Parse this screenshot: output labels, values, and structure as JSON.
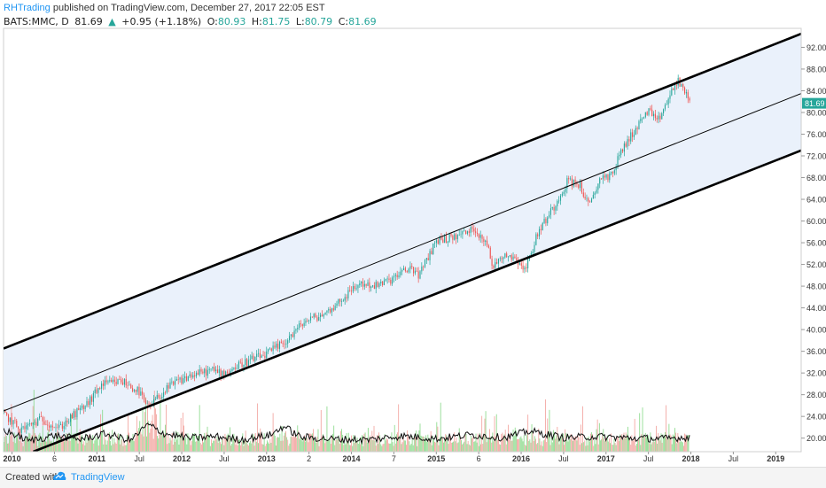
{
  "header": {
    "user": "RHTrading",
    "published": "published on TradingView.com, December 27, 2017 22:05 EST",
    "symbol": "BATS:MMC, D",
    "last": "81.69",
    "change_arrow": "▲",
    "change": "+0.95 (+1.18%)",
    "o_label": "O:",
    "o_value": "80.93",
    "h_label": "H:",
    "h_value": "81.75",
    "l_label": "L:",
    "l_value": "80.79",
    "c_label": "C:",
    "c_value": "81.69"
  },
  "footer": {
    "created": "Created with",
    "brand": "TradingView"
  },
  "colors": {
    "up": "#26a69a",
    "down": "#ef5350",
    "channel_fill": "#eaf1fb",
    "channel_line": "#000000",
    "brand": "#2196f3"
  },
  "chart_data": {
    "type": "candlestick",
    "y_ticks": [
      "92.00",
      "88.00",
      "84.00",
      "80.00",
      "76.00",
      "72.00",
      "68.00",
      "64.00",
      "60.00",
      "56.00",
      "52.00",
      "48.00",
      "44.00",
      "40.00",
      "36.00",
      "32.00",
      "28.00",
      "24.00",
      "20.00"
    ],
    "ylim": [
      17.5,
      95.5
    ],
    "x_ticks": [
      "2010",
      "6",
      "2011",
      "Jul",
      "2012",
      "Jul",
      "2013",
      "2",
      "2014",
      "7",
      "2015",
      "6",
      "2016",
      "Jul",
      "2017",
      "Jul",
      "2018",
      "Jul",
      "2019"
    ],
    "x_tick_dates": [
      2010.0,
      2010.5,
      2011.0,
      2011.5,
      2012.0,
      2012.5,
      2013.0,
      2013.5,
      2014.0,
      2014.5,
      2015.0,
      2015.5,
      2016.0,
      2016.5,
      2017.0,
      2017.5,
      2018.0,
      2018.5,
      2019.0
    ],
    "xlim": [
      2009.9,
      2019.3
    ],
    "price_path": [
      [
        2009.9,
        24.5
      ],
      [
        2010.1,
        21.5
      ],
      [
        2010.35,
        23.5
      ],
      [
        2010.55,
        21.8
      ],
      [
        2010.75,
        24.5
      ],
      [
        2010.9,
        26.5
      ],
      [
        2011.05,
        29.8
      ],
      [
        2011.3,
        30.5
      ],
      [
        2011.5,
        28.5
      ],
      [
        2011.6,
        25.5
      ],
      [
        2011.75,
        28.0
      ],
      [
        2011.9,
        30.0
      ],
      [
        2012.1,
        31.5
      ],
      [
        2012.35,
        32.5
      ],
      [
        2012.5,
        32.0
      ],
      [
        2012.75,
        34.0
      ],
      [
        2013.0,
        35.5
      ],
      [
        2013.2,
        37.5
      ],
      [
        2013.45,
        41.5
      ],
      [
        2013.7,
        43.0
      ],
      [
        2013.95,
        46.5
      ],
      [
        2014.1,
        48.5
      ],
      [
        2014.3,
        48.0
      ],
      [
        2014.5,
        49.5
      ],
      [
        2014.7,
        51.5
      ],
      [
        2014.8,
        50.0
      ],
      [
        2015.0,
        56.5
      ],
      [
        2015.2,
        57.0
      ],
      [
        2015.45,
        58.5
      ],
      [
        2015.6,
        56.0
      ],
      [
        2015.65,
        51.5
      ],
      [
        2015.8,
        54.0
      ],
      [
        2015.95,
        53.0
      ],
      [
        2016.05,
        51.0
      ],
      [
        2016.2,
        58.0
      ],
      [
        2016.4,
        63.0
      ],
      [
        2016.55,
        67.5
      ],
      [
        2016.7,
        66.5
      ],
      [
        2016.8,
        62.5
      ],
      [
        2016.95,
        68.5
      ],
      [
        2017.05,
        68.0
      ],
      [
        2017.2,
        73.5
      ],
      [
        2017.35,
        77.0
      ],
      [
        2017.5,
        80.5
      ],
      [
        2017.6,
        78.0
      ],
      [
        2017.75,
        83.0
      ],
      [
        2017.85,
        86.0
      ],
      [
        2017.92,
        84.0
      ],
      [
        2017.985,
        81.69
      ]
    ],
    "volume_line": [
      [
        2009.9,
        21.5
      ],
      [
        2010.2,
        19.5
      ],
      [
        2010.5,
        20.5
      ],
      [
        2010.8,
        19.8
      ],
      [
        2011.1,
        20.8
      ],
      [
        2011.4,
        19.6
      ],
      [
        2011.6,
        22.5
      ],
      [
        2011.8,
        20.8
      ],
      [
        2012.1,
        20.0
      ],
      [
        2012.4,
        20.3
      ],
      [
        2012.7,
        19.7
      ],
      [
        2013.05,
        20.6
      ],
      [
        2013.2,
        22.2
      ],
      [
        2013.4,
        20.2
      ],
      [
        2013.8,
        19.8
      ],
      [
        2014.2,
        19.7
      ],
      [
        2014.6,
        20.4
      ],
      [
        2015.0,
        19.9
      ],
      [
        2015.4,
        20.6
      ],
      [
        2015.8,
        20.1
      ],
      [
        2016.1,
        21.3
      ],
      [
        2016.5,
        20.1
      ],
      [
        2016.9,
        20.3
      ],
      [
        2017.3,
        20.0
      ],
      [
        2017.7,
        19.9
      ],
      [
        2017.985,
        20.2
      ]
    ],
    "channel": {
      "upper": [
        [
          2009.9,
          36.5
        ],
        [
          2019.3,
          94.5
        ]
      ],
      "middle": [
        [
          2009.9,
          25.0
        ],
        [
          2019.3,
          83.5
        ]
      ],
      "lower": [
        [
          2010.25,
          17.5
        ],
        [
          2019.3,
          73.0
        ]
      ]
    },
    "last_date": 2017.985
  }
}
